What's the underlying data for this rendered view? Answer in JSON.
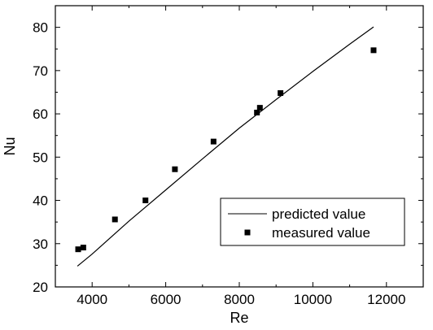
{
  "chart_data": {
    "type": "scatter",
    "title": "",
    "xlabel": "Re",
    "ylabel": "Nu",
    "xlim": [
      3000,
      13000
    ],
    "ylim": [
      20,
      85
    ],
    "x_ticks": [
      4000,
      6000,
      8000,
      10000,
      12000
    ],
    "y_ticks": [
      20,
      30,
      40,
      50,
      60,
      70,
      80
    ],
    "grid": false,
    "legend_position": "bottom-right",
    "series": [
      {
        "name": "predicted value",
        "type": "line",
        "color": "#000000",
        "x": [
          3600,
          4000,
          5000,
          6000,
          7000,
          8000,
          9000,
          10000,
          11000,
          11650
        ],
        "y": [
          24.8,
          27.6,
          35.2,
          42.4,
          49.6,
          56.7,
          63.3,
          69.8,
          76.1,
          80.1
        ]
      },
      {
        "name": "measured value",
        "type": "scatter",
        "marker": "square",
        "color": "#000000",
        "x": [
          3620,
          3760,
          4620,
          5450,
          6250,
          7300,
          8480,
          8560,
          9120,
          11650
        ],
        "y": [
          28.7,
          29.1,
          35.6,
          40.0,
          47.2,
          53.6,
          60.3,
          61.4,
          64.8,
          74.7
        ]
      }
    ]
  }
}
